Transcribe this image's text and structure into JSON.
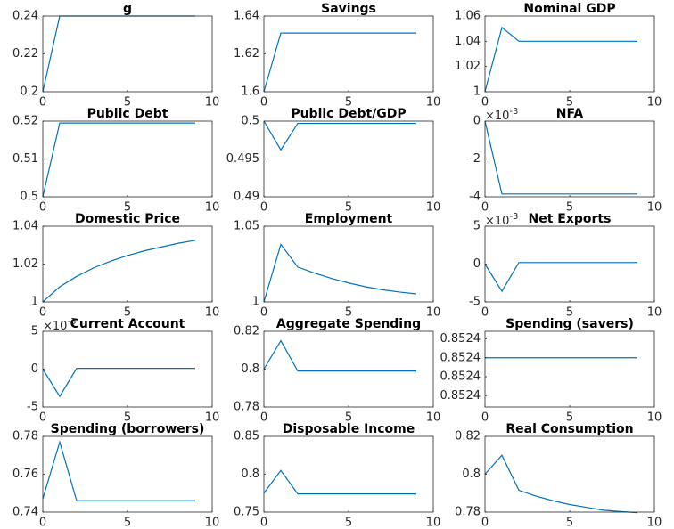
{
  "chart_data": [
    {
      "type": "line",
      "title": "g",
      "x": [
        0,
        1,
        2,
        3,
        4,
        5,
        6,
        7,
        8,
        9
      ],
      "values": [
        0.2,
        0.24,
        0.24,
        0.24,
        0.24,
        0.24,
        0.24,
        0.24,
        0.24,
        0.24
      ],
      "color": "#0072bd",
      "xlim": [
        0,
        10
      ],
      "xticks": [
        0,
        5,
        10
      ],
      "ylim": [
        0.2,
        0.24
      ],
      "yticks": [
        0.2,
        0.22,
        0.24
      ]
    },
    {
      "type": "line",
      "title": "Savings",
      "x": [
        0,
        1,
        2,
        3,
        4,
        5,
        6,
        7,
        8,
        9
      ],
      "values": [
        1.6,
        1.631,
        1.631,
        1.631,
        1.631,
        1.631,
        1.631,
        1.631,
        1.631,
        1.631
      ],
      "color": "#0072bd",
      "xlim": [
        0,
        10
      ],
      "xticks": [
        0,
        5,
        10
      ],
      "ylim": [
        1.6,
        1.64
      ],
      "yticks": [
        1.6,
        1.62,
        1.64
      ]
    },
    {
      "type": "line",
      "title": "Nominal GDP",
      "x": [
        0,
        1,
        2,
        3,
        4,
        5,
        6,
        7,
        8,
        9
      ],
      "values": [
        1,
        1.051,
        1.04,
        1.04,
        1.04,
        1.04,
        1.04,
        1.04,
        1.04,
        1.04
      ],
      "color": "#0072bd",
      "xlim": [
        0,
        10
      ],
      "xticks": [
        0,
        5,
        10
      ],
      "ylim": [
        1,
        1.06
      ],
      "yticks": [
        1,
        1.02,
        1.04,
        1.06
      ]
    },
    {
      "type": "line",
      "title": "Public Debt",
      "x": [
        0,
        1,
        2,
        3,
        4,
        5,
        6,
        7,
        8,
        9
      ],
      "values": [
        0.5,
        0.5195,
        0.5195,
        0.5195,
        0.5195,
        0.5195,
        0.5195,
        0.5195,
        0.5195,
        0.5195
      ],
      "color": "#0072bd",
      "xlim": [
        0,
        10
      ],
      "xticks": [
        0,
        5,
        10
      ],
      "ylim": [
        0.5,
        0.52
      ],
      "yticks": [
        0.5,
        0.51,
        0.52
      ]
    },
    {
      "type": "line",
      "title": "Public Debt/GDP",
      "x": [
        0,
        1,
        2,
        3,
        4,
        5,
        6,
        7,
        8,
        9
      ],
      "values": [
        0.5,
        0.4962,
        0.4997,
        0.4997,
        0.4997,
        0.4997,
        0.4997,
        0.4997,
        0.4997,
        0.4997
      ],
      "color": "#0072bd",
      "xlim": [
        0,
        10
      ],
      "xticks": [
        0,
        5,
        10
      ],
      "ylim": [
        0.49,
        0.5
      ],
      "yticks": [
        0.49,
        0.495,
        0.5
      ]
    },
    {
      "type": "line",
      "title": "NFA",
      "x": [
        0,
        1,
        2,
        3,
        4,
        5,
        6,
        7,
        8,
        9
      ],
      "values": [
        0,
        -0.00385,
        -0.00385,
        -0.00385,
        -0.00385,
        -0.00385,
        -0.00385,
        -0.00385,
        -0.00385,
        -0.00385
      ],
      "color": "#0072bd",
      "xlim": [
        0,
        10
      ],
      "xticks": [
        0,
        5,
        10
      ],
      "ylim": [
        -0.004,
        0
      ],
      "yticks": [
        {
          "value": -0.004,
          "label": "-4"
        },
        {
          "value": -0.002,
          "label": "-2"
        },
        0
      ],
      "y_multiplier": {
        "base": "×10",
        "exponent": "-3"
      }
    },
    {
      "type": "line",
      "title": "Domestic Price",
      "x": [
        0,
        1,
        2,
        3,
        4,
        5,
        6,
        7,
        8,
        9
      ],
      "values": [
        1,
        1.008,
        1.0135,
        1.018,
        1.0215,
        1.0245,
        1.027,
        1.029,
        1.031,
        1.0325
      ],
      "color": "#0072bd",
      "xlim": [
        0,
        10
      ],
      "xticks": [
        0,
        5,
        10
      ],
      "ylim": [
        1,
        1.04
      ],
      "yticks": [
        1,
        1.02,
        1.04
      ]
    },
    {
      "type": "line",
      "title": "Employment",
      "x": [
        0,
        1,
        2,
        3,
        4,
        5,
        6,
        7,
        8,
        9
      ],
      "values": [
        1,
        1.038,
        1.023,
        1.019,
        1.0155,
        1.0125,
        1.01,
        1.008,
        1.0065,
        1.0053
      ],
      "color": "#0072bd",
      "xlim": [
        0,
        10
      ],
      "xticks": [
        0,
        5,
        10
      ],
      "ylim": [
        1,
        1.05
      ],
      "yticks": [
        1,
        1.05
      ]
    },
    {
      "type": "line",
      "title": "Net Exports",
      "x": [
        0,
        1,
        2,
        3,
        4,
        5,
        6,
        7,
        8,
        9
      ],
      "values": [
        0,
        -0.0036,
        0.0002,
        0.0002,
        0.0002,
        0.0002,
        0.0002,
        0.0002,
        0.0002,
        0.0002
      ],
      "color": "#0072bd",
      "xlim": [
        0,
        10
      ],
      "xticks": [
        0,
        5,
        10
      ],
      "ylim": [
        -0.005,
        0.005
      ],
      "yticks": [
        {
          "value": -0.005,
          "label": "-5"
        },
        0,
        {
          "value": 0.005,
          "label": "5"
        }
      ],
      "y_multiplier": {
        "base": "×10",
        "exponent": "-3"
      }
    },
    {
      "type": "line",
      "title": "Current Account",
      "x": [
        0,
        1,
        2,
        3,
        4,
        5,
        6,
        7,
        8,
        9
      ],
      "values": [
        0,
        -0.0036,
        0.0001,
        0.0001,
        0.0001,
        0.0001,
        0.0001,
        0.0001,
        0.0001,
        0.0001
      ],
      "color": "#0072bd",
      "xlim": [
        0,
        10
      ],
      "xticks": [
        0,
        5,
        10
      ],
      "ylim": [
        -0.005,
        0.005
      ],
      "yticks": [
        {
          "value": -0.005,
          "label": "-5"
        },
        0,
        {
          "value": 0.005,
          "label": "5"
        }
      ],
      "y_multiplier": {
        "base": "×10",
        "exponent": "-3"
      }
    },
    {
      "type": "line",
      "title": "Aggregate Spending",
      "x": [
        0,
        1,
        2,
        3,
        4,
        5,
        6,
        7,
        8,
        9
      ],
      "values": [
        0.8,
        0.815,
        0.799,
        0.799,
        0.799,
        0.799,
        0.799,
        0.799,
        0.799,
        0.799
      ],
      "color": "#0072bd",
      "xlim": [
        0,
        10
      ],
      "xticks": [
        0,
        5,
        10
      ],
      "ylim": [
        0.78,
        0.82
      ],
      "yticks": [
        0.78,
        0.8,
        0.82
      ]
    },
    {
      "type": "line",
      "title": "Spending (savers)",
      "x": [
        0,
        1,
        2,
        3,
        4,
        5,
        6,
        7,
        8,
        9
      ],
      "values": [
        0.852395,
        0.852395,
        0.852395,
        0.852395,
        0.852395,
        0.852395,
        0.852395,
        0.852395,
        0.852395,
        0.852395
      ],
      "color": "#0072bd",
      "xlim": [
        0,
        10
      ],
      "xticks": [
        0,
        5,
        10
      ],
      "ylim": [
        0.852382,
        0.852402
      ],
      "yticks": [
        {
          "value": 0.852385,
          "label": "0.8524"
        },
        {
          "value": 0.85239,
          "label": "0.8524"
        },
        {
          "value": 0.852395,
          "label": "0.8524"
        },
        {
          "value": 0.8524,
          "label": "0.8524"
        }
      ]
    },
    {
      "type": "line",
      "title": "Spending (borrowers)",
      "x": [
        0,
        1,
        2,
        3,
        4,
        5,
        6,
        7,
        8,
        9
      ],
      "values": [
        0.747,
        0.777,
        0.746,
        0.746,
        0.746,
        0.746,
        0.746,
        0.746,
        0.746,
        0.746
      ],
      "color": "#0072bd",
      "xlim": [
        0,
        10
      ],
      "xticks": [
        0,
        5,
        10
      ],
      "ylim": [
        0.74,
        0.78
      ],
      "yticks": [
        0.74,
        0.76,
        0.78
      ]
    },
    {
      "type": "line",
      "title": "Disposable Income",
      "x": [
        0,
        1,
        2,
        3,
        4,
        5,
        6,
        7,
        8,
        9
      ],
      "values": [
        0.775,
        0.805,
        0.774,
        0.774,
        0.774,
        0.774,
        0.774,
        0.774,
        0.774,
        0.774
      ],
      "color": "#0072bd",
      "xlim": [
        0,
        10
      ],
      "xticks": [
        0,
        5,
        10
      ],
      "ylim": [
        0.75,
        0.85
      ],
      "yticks": [
        0.75,
        0.8,
        0.85
      ]
    },
    {
      "type": "line",
      "title": "Real Consumption",
      "x": [
        0,
        1,
        2,
        3,
        4,
        5,
        6,
        7,
        8,
        9
      ],
      "values": [
        0.8,
        0.81,
        0.7915,
        0.7885,
        0.786,
        0.784,
        0.7825,
        0.781,
        0.7803,
        0.7797
      ],
      "color": "#0072bd",
      "xlim": [
        0,
        10
      ],
      "xticks": [
        0,
        5,
        10
      ],
      "ylim": [
        0.78,
        0.82
      ],
      "yticks": [
        0.78,
        0.8,
        0.82
      ]
    }
  ]
}
